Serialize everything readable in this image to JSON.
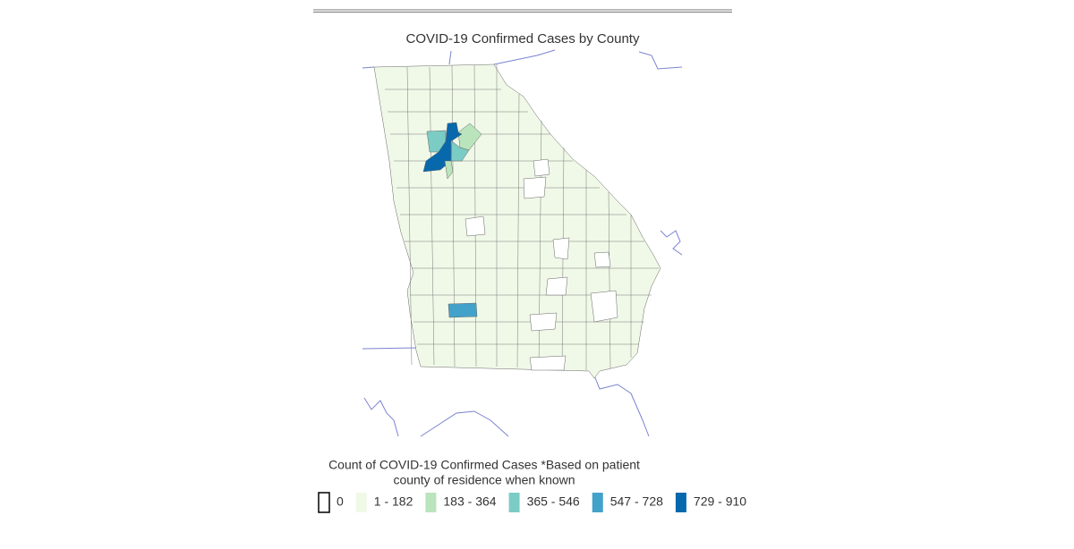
{
  "map": {
    "title": "COVID-19 Confirmed Cases by County",
    "legend": {
      "title_lines": [
        "Count of COVID-19 Confirmed Cases *Based on patient",
        "county of residence when known"
      ],
      "items": [
        {
          "label": "0",
          "color": "#ffffff"
        },
        {
          "label": "1 - 182",
          "color": "#f0f9e8"
        },
        {
          "label": "183 - 364",
          "color": "#bae4bc"
        },
        {
          "label": "365 - 546",
          "color": "#7bccc4"
        },
        {
          "label": "547 - 728",
          "color": "#43a2ca"
        },
        {
          "label": "729 - 910",
          "color": "#0868ac"
        }
      ]
    }
  }
}
